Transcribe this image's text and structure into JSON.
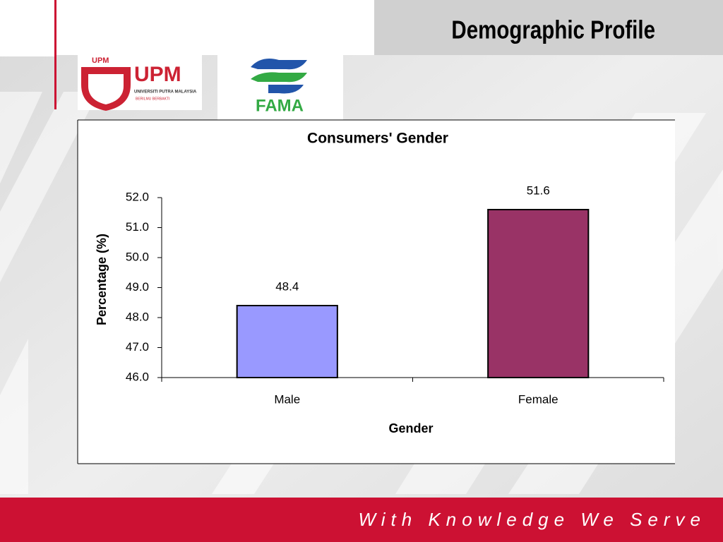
{
  "slide": {
    "title": "Demographic Profile",
    "footer": "With Knowledge We Serve",
    "logos": {
      "upm": "UPM",
      "upm_name": "UNIVERSITI PUTRA MALAYSIA",
      "upm_motto": "BERILMU BERBAKTI",
      "fama": "FAMA"
    }
  },
  "chart_data": {
    "type": "bar",
    "title": "Consumers' Gender",
    "x_label": "Gender",
    "y_label": "Percentage (%)",
    "categories": [
      "Male",
      "Female"
    ],
    "values": [
      48.4,
      51.6
    ],
    "colors": [
      "#9999ff",
      "#993366"
    ],
    "ylim": [
      46,
      52
    ],
    "yticks": [
      {
        "value": 46,
        "label": "46.0"
      },
      {
        "value": 47,
        "label": "47.0"
      },
      {
        "value": 48,
        "label": "48.0"
      },
      {
        "value": 49,
        "label": "49.0"
      },
      {
        "value": 50,
        "label": "50.0"
      },
      {
        "value": 51,
        "label": "51.0"
      },
      {
        "value": 52,
        "label": "52.0"
      }
    ],
    "grid": false
  }
}
